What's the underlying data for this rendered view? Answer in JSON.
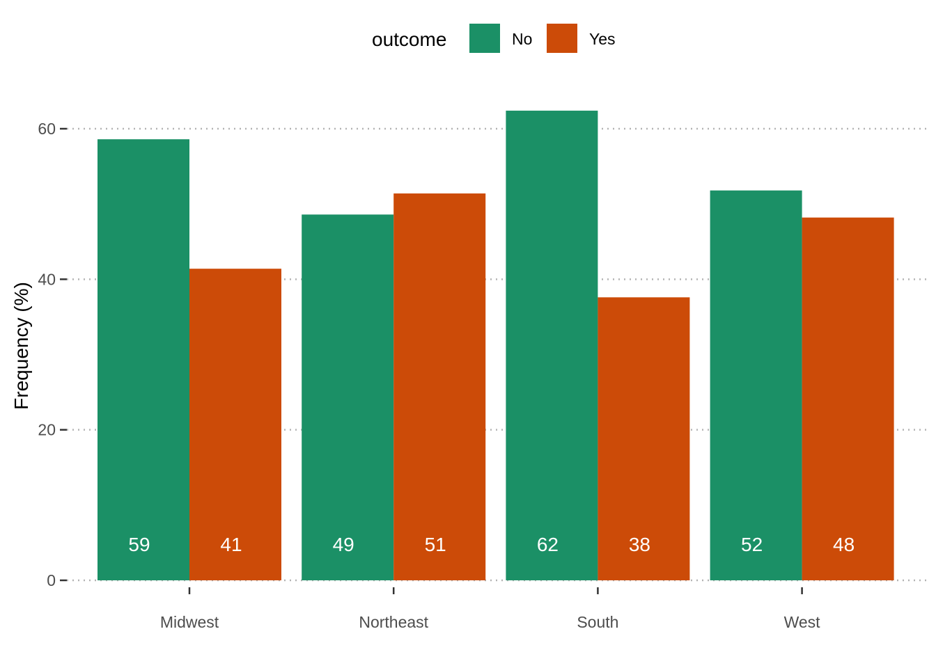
{
  "chart_data": {
    "type": "bar",
    "categories": [
      "Midwest",
      "Northeast",
      "South",
      "West"
    ],
    "series": [
      {
        "name": "No",
        "values": [
          58.6,
          48.6,
          62.4,
          51.8
        ],
        "labels": [
          "59",
          "49",
          "62",
          "52"
        ]
      },
      {
        "name": "Yes",
        "values": [
          41.4,
          51.4,
          37.6,
          48.2
        ],
        "labels": [
          "41",
          "51",
          "38",
          "48"
        ]
      }
    ],
    "ylabel": "Frequency (%)",
    "xlabel": "",
    "ylim": [
      0,
      66
    ],
    "yticks": [
      0,
      20,
      40,
      60
    ],
    "ytick_labels": [
      "0",
      "20",
      "40",
      "60"
    ],
    "grid": "horizontal dotted",
    "legend": {
      "title": "outcome",
      "position": "top"
    },
    "colors": {
      "No": "#1b9066",
      "Yes": "#cc4b08"
    }
  }
}
